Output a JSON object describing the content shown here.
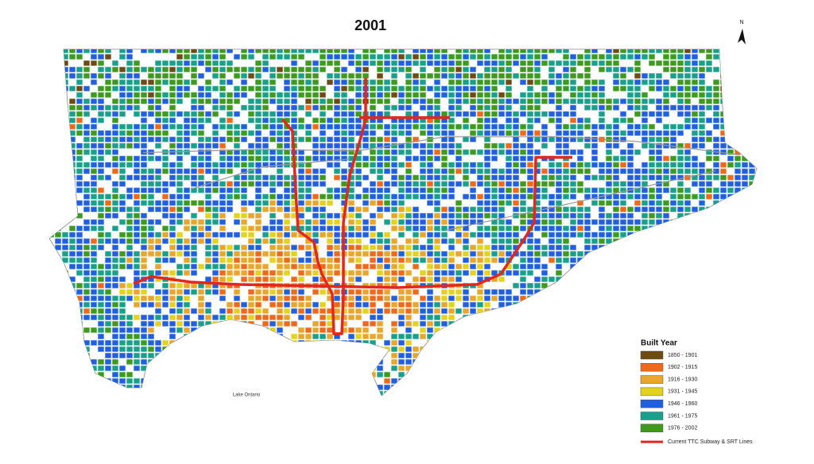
{
  "title": "2001",
  "north_label": "N",
  "lake_label": "Lake Ontario",
  "legend": {
    "title": "Built Year",
    "items": [
      {
        "label": "1850 - 1901",
        "color": "#6e4b14"
      },
      {
        "label": "1902 - 1915",
        "color": "#ee6a1a"
      },
      {
        "label": "1916 - 1930",
        "color": "#e8a62a"
      },
      {
        "label": "1931 - 1945",
        "color": "#e3d21e"
      },
      {
        "label": "1946 - 1960",
        "color": "#1f5fe0"
      },
      {
        "label": "1961 - 1975",
        "color": "#17a08a"
      },
      {
        "label": "1976 - 2002",
        "color": "#3d9a1e"
      }
    ],
    "line": {
      "label": "Current TTC Subway & SRT Lines",
      "color": "#e3261e"
    }
  }
}
